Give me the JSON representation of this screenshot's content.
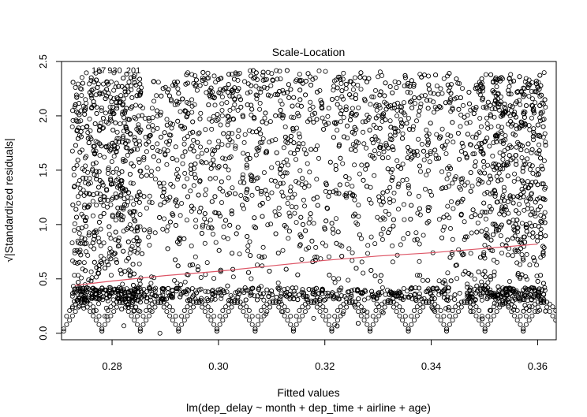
{
  "chart_data": {
    "type": "scatter",
    "title": "Scale-Location",
    "xlabel": "Fitted values",
    "ylabel": "√|Standardized residuals|",
    "subtitle": "lm(dep_delay ~ month + dep_time + airline + age)",
    "xlim": [
      0.2705,
      0.3635
    ],
    "ylim": [
      -0.06,
      2.5
    ],
    "x_ticks": [
      "0.28",
      "0.30",
      "0.32",
      "0.34",
      "0.36"
    ],
    "x_tick_values": [
      0.28,
      0.3,
      0.32,
      0.34,
      0.36
    ],
    "y_ticks": [
      "0.0",
      "0.5",
      "1.0",
      "1.5",
      "2.0",
      "2.5"
    ],
    "y_tick_values": [
      0.0,
      0.5,
      1.0,
      1.5,
      2.0,
      2.5
    ],
    "grid": false,
    "point_labels": [
      {
        "text": "167",
        "x": 0.2775,
        "y": 2.42
      },
      {
        "text": "930",
        "x": 0.2805,
        "y": 2.42
      },
      {
        "text": "201",
        "x": 0.284,
        "y": 2.42
      }
    ],
    "smoother": {
      "color": "#dd5566",
      "x": [
        0.273,
        0.28,
        0.29,
        0.3,
        0.31,
        0.32,
        0.33,
        0.34,
        0.35,
        0.36
      ],
      "y": [
        0.44,
        0.48,
        0.53,
        0.57,
        0.62,
        0.67,
        0.71,
        0.74,
        0.78,
        0.82
      ]
    },
    "series": [
      {
        "point_color": "#000000",
        "x_range": [
          0.2725,
          0.3615
        ],
        "y_range": [
          0.0,
          2.42
        ],
        "description_points": [
          {
            "x": 0.273,
            "y": 0.65
          },
          {
            "x": 0.275,
            "y": 2.15
          },
          {
            "x": 0.278,
            "y": 2.05
          },
          {
            "x": 0.285,
            "y": 1.6
          },
          {
            "x": 0.295,
            "y": 2.38
          },
          {
            "x": 0.31,
            "y": 2.39
          },
          {
            "x": 0.33,
            "y": 2.36
          },
          {
            "x": 0.345,
            "y": 2.3
          },
          {
            "x": 0.355,
            "y": 2.2
          },
          {
            "x": 0.361,
            "y": 0.8
          },
          {
            "x": 0.36,
            "y": 0.2
          },
          {
            "x": 0.289,
            "y": 0.0
          }
        ]
      }
    ]
  }
}
